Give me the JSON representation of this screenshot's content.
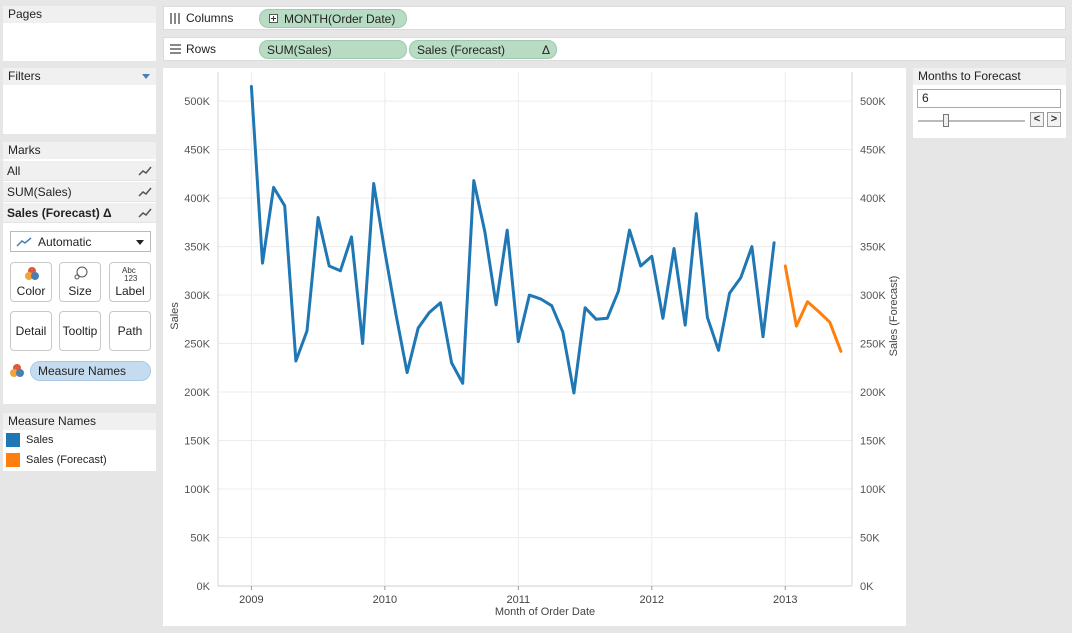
{
  "pages": {
    "title": "Pages"
  },
  "filters": {
    "title": "Filters"
  },
  "marks": {
    "title": "Marks",
    "rows": [
      "All",
      "SUM(Sales)",
      "Sales (Forecast) Δ"
    ],
    "mark_type": "Automatic",
    "buttons": [
      "Color",
      "Size",
      "Label",
      "Detail",
      "Tooltip",
      "Path"
    ],
    "color_pill": "Measure Names"
  },
  "legend": {
    "title": "Measure Names",
    "items": [
      {
        "label": "Sales",
        "color": "#1f77b4"
      },
      {
        "label": "Sales (Forecast)",
        "color": "#ff7f0e"
      }
    ]
  },
  "shelves": {
    "columns_label": "Columns",
    "columns_pill": "MONTH(Order Date)",
    "rows_label": "Rows",
    "rows_pill_1": "SUM(Sales)",
    "rows_pill_2": "Sales (Forecast)",
    "delta": "Δ"
  },
  "parameter": {
    "title": "Months to Forecast",
    "value": "6",
    "slider_fraction": 0.25,
    "prev": "<",
    "next": ">"
  },
  "colors": {
    "sales": "#1f77b4",
    "forecast": "#ff7f0e",
    "pill": "#b7dbc3"
  },
  "chart_data": {
    "type": "line",
    "xlabel": "Month of Order Date",
    "ylabel": "Sales",
    "ylabel_right": "Sales (Forecast)",
    "x_ticks": [
      "2009",
      "2010",
      "2011",
      "2012",
      "2013"
    ],
    "y_ticks": [
      "0K",
      "50K",
      "100K",
      "150K",
      "200K",
      "250K",
      "300K",
      "350K",
      "400K",
      "450K",
      "500K"
    ],
    "ylim": [
      0,
      530000
    ],
    "xlim": [
      "2008-10",
      "2013-07"
    ],
    "grid": true,
    "series": [
      {
        "name": "Sales",
        "x": [
          "2009-01",
          "2009-02",
          "2009-03",
          "2009-04",
          "2009-05",
          "2009-06",
          "2009-07",
          "2009-08",
          "2009-09",
          "2009-10",
          "2009-11",
          "2009-12",
          "2010-01",
          "2010-02",
          "2010-03",
          "2010-04",
          "2010-05",
          "2010-06",
          "2010-07",
          "2010-08",
          "2010-09",
          "2010-10",
          "2010-11",
          "2010-12",
          "2011-01",
          "2011-02",
          "2011-03",
          "2011-04",
          "2011-05",
          "2011-06",
          "2011-07",
          "2011-08",
          "2011-09",
          "2011-10",
          "2011-11",
          "2011-12",
          "2012-01",
          "2012-02",
          "2012-03",
          "2012-04",
          "2012-05",
          "2012-06",
          "2012-07",
          "2012-08",
          "2012-09",
          "2012-10",
          "2012-11",
          "2012-12"
        ],
        "values": [
          515000,
          333000,
          411000,
          392000,
          232000,
          263000,
          380000,
          330000,
          325000,
          360000,
          250000,
          415000,
          345000,
          280000,
          220000,
          266000,
          282000,
          292000,
          230000,
          209000,
          418000,
          365000,
          290000,
          367000,
          252000,
          300000,
          296000,
          289000,
          262000,
          199000,
          287000,
          275000,
          276000,
          304000,
          367000,
          330000,
          340000,
          276000,
          348000,
          269000,
          384000,
          277000,
          243000,
          302000,
          318000,
          350000,
          257000,
          354000
        ]
      },
      {
        "name": "Sales (Forecast)",
        "x": [
          "2013-01",
          "2013-02",
          "2013-03",
          "2013-04",
          "2013-05",
          "2013-06"
        ],
        "values": [
          330000,
          268000,
          293000,
          283000,
          272000,
          242000
        ]
      }
    ]
  }
}
